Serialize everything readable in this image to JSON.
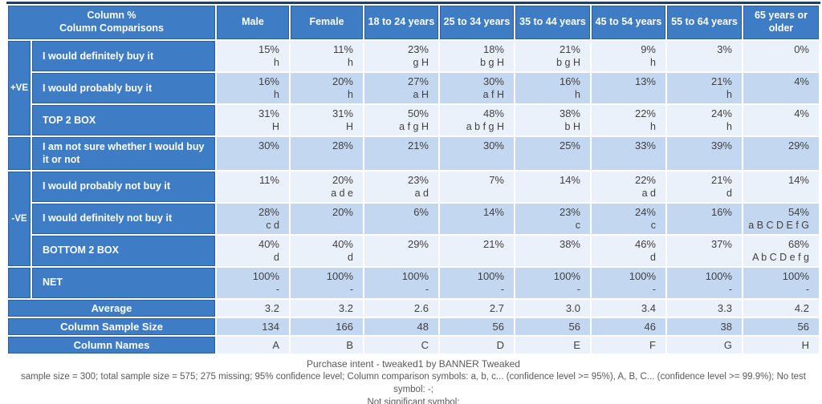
{
  "chart_data": {
    "type": "table",
    "title": "Purchase intent - tweaked1 by BANNER Tweaked",
    "corner": {
      "line1": "Column %",
      "line2": "Column Comparisons"
    },
    "columns": [
      "Male",
      "Female",
      "18 to 24 years",
      "25 to 34 years",
      "35 to 44 years",
      "45 to 54 years",
      "55 to 64 years",
      "65 years or older"
    ],
    "rows": [
      {
        "group": "+VE",
        "group_span": 3,
        "label": "I would definitely buy it",
        "cells": [
          [
            "15%",
            "h"
          ],
          [
            "11%",
            "h"
          ],
          [
            "23%",
            "g H"
          ],
          [
            "18%",
            "b g H"
          ],
          [
            "21%",
            "b g H"
          ],
          [
            "9%",
            "h"
          ],
          [
            "3%",
            ""
          ],
          [
            "0%",
            ""
          ]
        ]
      },
      {
        "label": "I would probably buy it",
        "cells": [
          [
            "16%",
            "h"
          ],
          [
            "20%",
            "h"
          ],
          [
            "27%",
            "a H"
          ],
          [
            "30%",
            "a f H"
          ],
          [
            "16%",
            "h"
          ],
          [
            "13%",
            ""
          ],
          [
            "21%",
            "h"
          ],
          [
            "4%",
            ""
          ]
        ]
      },
      {
        "label": "TOP 2 BOX",
        "cells": [
          [
            "31%",
            "H"
          ],
          [
            "31%",
            "H"
          ],
          [
            "50%",
            "a f g H"
          ],
          [
            "48%",
            "a b f g H"
          ],
          [
            "38%",
            "b H"
          ],
          [
            "22%",
            "h"
          ],
          [
            "24%",
            "h"
          ],
          [
            "4%",
            ""
          ]
        ]
      },
      {
        "group": "",
        "group_span": 1,
        "label": "I am not sure whether I would buy it or not",
        "cells": [
          [
            "30%",
            ""
          ],
          [
            "28%",
            ""
          ],
          [
            "21%",
            ""
          ],
          [
            "30%",
            ""
          ],
          [
            "25%",
            ""
          ],
          [
            "33%",
            ""
          ],
          [
            "39%",
            ""
          ],
          [
            "29%",
            ""
          ]
        ]
      },
      {
        "group": "-VE",
        "group_span": 3,
        "label": "I would probably not buy it",
        "cells": [
          [
            "11%",
            ""
          ],
          [
            "20%",
            "a d e"
          ],
          [
            "23%",
            "a d"
          ],
          [
            "7%",
            ""
          ],
          [
            "14%",
            ""
          ],
          [
            "22%",
            "a d"
          ],
          [
            "21%",
            "d"
          ],
          [
            "14%",
            ""
          ]
        ]
      },
      {
        "label": "I would definitely not buy it",
        "cells": [
          [
            "28%",
            "c d"
          ],
          [
            "20%",
            ""
          ],
          [
            "6%",
            ""
          ],
          [
            "14%",
            ""
          ],
          [
            "23%",
            "c"
          ],
          [
            "24%",
            "c"
          ],
          [
            "16%",
            ""
          ],
          [
            "54%",
            "a B C D E f G"
          ]
        ]
      },
      {
        "label": "BOTTOM 2 BOX",
        "cells": [
          [
            "40%",
            "d"
          ],
          [
            "40%",
            "d"
          ],
          [
            "29%",
            ""
          ],
          [
            "21%",
            ""
          ],
          [
            "38%",
            ""
          ],
          [
            "46%",
            "d"
          ],
          [
            "37%",
            ""
          ],
          [
            "68%",
            "A b C D e f g"
          ]
        ]
      },
      {
        "group": "",
        "group_span": 1,
        "label": "NET",
        "cells": [
          [
            "100%",
            "-"
          ],
          [
            "100%",
            "-"
          ],
          [
            "100%",
            "-"
          ],
          [
            "100%",
            "-"
          ],
          [
            "100%",
            "-"
          ],
          [
            "100%",
            "-"
          ],
          [
            "100%",
            "-"
          ],
          [
            "100%",
            "-"
          ]
        ]
      }
    ],
    "summary_rows": [
      {
        "label": "Average",
        "values": [
          "3.2",
          "3.2",
          "2.6",
          "2.7",
          "3.0",
          "3.4",
          "3.3",
          "4.2"
        ]
      },
      {
        "label": "Column Sample Size",
        "values": [
          "134",
          "166",
          "48",
          "56",
          "56",
          "46",
          "38",
          "56"
        ]
      },
      {
        "label": "Column Names",
        "values": [
          "A",
          "B",
          "C",
          "D",
          "E",
          "F",
          "G",
          "H"
        ]
      }
    ],
    "footnotes": [
      "sample size = 300; total sample size = 575; 275 missing; 95% confidence level; Column comparison symbols: a, b, c... (confidence level >= 95%), A, B, C... (confidence level >= 99.9%); No test symbol: -;",
      "Not significant symbol:"
    ]
  },
  "colors": {
    "header_blue": "#3e7cc6",
    "blue_border": "#2d5f9e",
    "table_top_border": "#1e4065",
    "row_light": "#eaf1fa",
    "row_dark": "#c4d7f0",
    "value_text": "#414141",
    "footer_text": "#595959"
  }
}
